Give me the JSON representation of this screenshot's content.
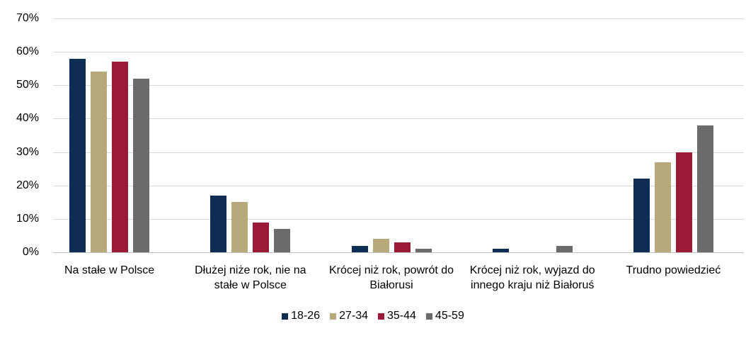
{
  "chart_data": {
    "type": "bar",
    "categories": [
      "Na stałe w Polsce",
      "Dłużej  niże rok, nie na stałe w Polsce",
      "Krócej niż rok, powrót do Białorusi",
      "Krócej niż rok, wyjazd do innego kraju niż Białoruś",
      "Trudno powiedzieć"
    ],
    "series": [
      {
        "name": "18-26",
        "color": "#0f2d54",
        "values": [
          58,
          17,
          2,
          1,
          22
        ]
      },
      {
        "name": "27-34",
        "color": "#b8a97a",
        "values": [
          54,
          15,
          4,
          0,
          27
        ]
      },
      {
        "name": "35-44",
        "color": "#9b1b37",
        "values": [
          57,
          9,
          3,
          0,
          30
        ]
      },
      {
        "name": "45-59",
        "color": "#6b6b6b",
        "values": [
          52,
          7,
          1,
          2,
          38
        ]
      }
    ],
    "ylim": [
      0,
      70
    ],
    "yticks": [
      {
        "value": 0,
        "label": "0%"
      },
      {
        "value": 10,
        "label": "10%"
      },
      {
        "value": 20,
        "label": "20%"
      },
      {
        "value": 30,
        "label": "30%"
      },
      {
        "value": 40,
        "label": "40%"
      },
      {
        "value": 50,
        "label": "50%"
      },
      {
        "value": 60,
        "label": "60%"
      },
      {
        "value": 70,
        "label": "70%"
      }
    ],
    "grid": true,
    "legend": "bottom"
  }
}
